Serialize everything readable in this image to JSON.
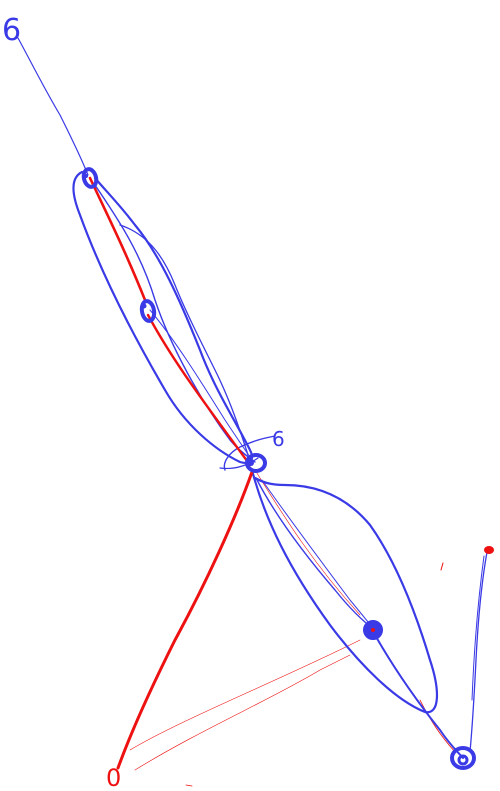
{
  "labels": {
    "top_left": "6",
    "middle": "6",
    "bottom_left": "0"
  },
  "colors": {
    "blue": "#3a3ae6",
    "red": "#ee1111",
    "background": "#ffffff"
  }
}
